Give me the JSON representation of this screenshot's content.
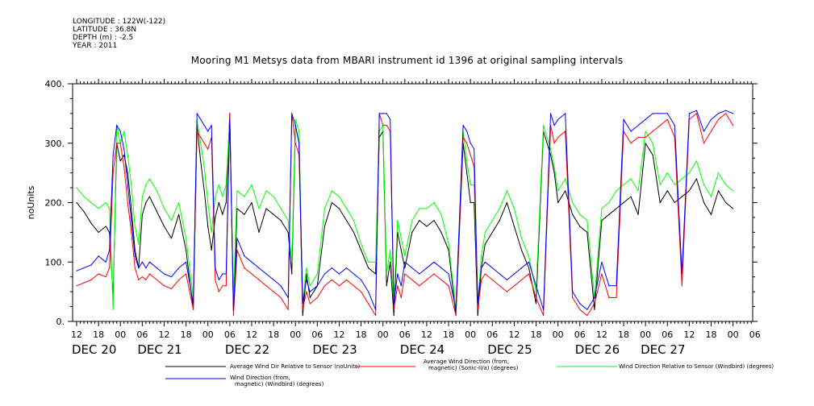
{
  "header": {
    "longitude": "LONGITUDE : 122W(-122)",
    "latitude": "LATITUDE : 36.8N",
    "depth": "DEPTH (m) : -2.5",
    "year": "YEAR : 2011"
  },
  "chart_data": {
    "type": "line",
    "title": "Mooring M1 Metsys data from MBARI instrument id 1396 at original sampling intervals",
    "ylabel": "noUnits",
    "xlabel": "",
    "ylim": [
      0,
      400
    ],
    "y_ticks": [
      "0.",
      "100.",
      "200.",
      "300.",
      "400."
    ],
    "y_tick_values": [
      0,
      100,
      200,
      300,
      400
    ],
    "x_range_hours": [
      0,
      180
    ],
    "x_note": "x values are hours after 2011-12-20 12:00",
    "hour_ticks": [
      {
        "h": 0,
        "label": "12"
      },
      {
        "h": 6,
        "label": "18"
      },
      {
        "h": 12,
        "label": "00"
      },
      {
        "h": 18,
        "label": "06"
      },
      {
        "h": 24,
        "label": "12"
      },
      {
        "h": 30,
        "label": "18"
      },
      {
        "h": 36,
        "label": "00"
      },
      {
        "h": 42,
        "label": "06"
      },
      {
        "h": 48,
        "label": "12"
      },
      {
        "h": 54,
        "label": "18"
      },
      {
        "h": 60,
        "label": "00"
      },
      {
        "h": 66,
        "label": "06"
      },
      {
        "h": 72,
        "label": "12"
      },
      {
        "h": 78,
        "label": "18"
      },
      {
        "h": 84,
        "label": "00"
      },
      {
        "h": 90,
        "label": "06"
      },
      {
        "h": 96,
        "label": "12"
      },
      {
        "h": 102,
        "label": "18"
      },
      {
        "h": 108,
        "label": "00"
      },
      {
        "h": 114,
        "label": "06"
      },
      {
        "h": 120,
        "label": "12"
      },
      {
        "h": 126,
        "label": "18"
      },
      {
        "h": 132,
        "label": "00"
      },
      {
        "h": 138,
        "label": "06"
      },
      {
        "h": 144,
        "label": "12"
      },
      {
        "h": 150,
        "label": "18"
      },
      {
        "h": 156,
        "label": "00"
      },
      {
        "h": 162,
        "label": "06"
      },
      {
        "h": 168,
        "label": "12"
      },
      {
        "h": 174,
        "label": "18"
      },
      {
        "h": 180,
        "label": "00"
      },
      {
        "h": 186,
        "label": "06"
      }
    ],
    "day_labels": [
      {
        "h": 0,
        "label": "DEC 20"
      },
      {
        "h": 18,
        "label": "DEC 21"
      },
      {
        "h": 42,
        "label": "DEC 22"
      },
      {
        "h": 66,
        "label": "DEC 23"
      },
      {
        "h": 90,
        "label": "DEC 24"
      },
      {
        "h": 114,
        "label": "DEC 25"
      },
      {
        "h": 138,
        "label": "DEC 26"
      },
      {
        "h": 156,
        "label": "DEC 27"
      }
    ],
    "series": [
      {
        "name": "Average Wind Dir Relative to Sensor (noUnits)",
        "color": "#000000",
        "x": [
          0,
          2,
          4,
          6,
          8,
          9,
          10,
          11,
          12,
          13,
          14,
          15,
          16,
          17,
          18,
          19,
          20,
          22,
          24,
          26,
          28,
          30,
          32,
          33,
          34,
          35,
          36,
          37,
          38,
          39,
          40,
          41,
          42,
          43,
          44,
          46,
          48,
          50,
          52,
          54,
          56,
          58,
          59,
          60,
          61,
          62,
          63,
          64,
          66,
          68,
          70,
          72,
          74,
          76,
          78,
          80,
          82,
          83,
          84,
          85,
          86,
          87,
          88,
          89,
          90,
          92,
          94,
          96,
          98,
          100,
          102,
          104,
          106,
          107,
          108,
          109,
          110,
          111,
          112,
          114,
          116,
          118,
          120,
          122,
          124,
          126,
          128,
          130,
          131,
          132,
          134,
          136,
          138,
          140,
          142,
          144,
          146,
          148,
          150,
          152,
          154,
          156,
          158,
          160,
          162,
          164,
          166,
          168,
          170,
          172,
          174,
          176,
          178,
          180
        ],
        "values": [
          200,
          185,
          165,
          150,
          160,
          150,
          40,
          300,
          270,
          280,
          250,
          190,
          120,
          90,
          180,
          200,
          210,
          185,
          160,
          140,
          180,
          120,
          20,
          330,
          270,
          220,
          160,
          120,
          175,
          200,
          180,
          200,
          350,
          20,
          190,
          180,
          200,
          150,
          190,
          180,
          170,
          150,
          80,
          330,
          300,
          10,
          80,
          40,
          60,
          160,
          200,
          190,
          170,
          150,
          120,
          90,
          80,
          310,
          320,
          60,
          100,
          10,
          150,
          120,
          90,
          150,
          170,
          160,
          170,
          150,
          120,
          10,
          300,
          250,
          200,
          200,
          10,
          90,
          130,
          150,
          170,
          200,
          160,
          120,
          90,
          30,
          320,
          280,
          250,
          200,
          220,
          180,
          160,
          150,
          20,
          170,
          180,
          190,
          200,
          210,
          180,
          300,
          280,
          200,
          220,
          200,
          210,
          220,
          240,
          200,
          180,
          220,
          200,
          190
        ]
      },
      {
        "name": "Average Wind Direction (from, magnetic) (Sonic-II/a) (degrees)",
        "color": "#ff0000",
        "x": [
          0,
          2,
          4,
          6,
          8,
          9,
          10,
          11,
          12,
          13,
          14,
          15,
          16,
          17,
          18,
          19,
          20,
          22,
          24,
          26,
          28,
          30,
          32,
          33,
          34,
          35,
          36,
          37,
          38,
          39,
          40,
          41,
          42,
          43,
          44,
          46,
          48,
          50,
          52,
          54,
          56,
          58,
          59,
          60,
          61,
          62,
          63,
          64,
          66,
          68,
          70,
          72,
          74,
          76,
          78,
          80,
          82,
          83,
          84,
          85,
          86,
          87,
          88,
          89,
          90,
          92,
          94,
          96,
          98,
          100,
          102,
          104,
          106,
          107,
          108,
          109,
          110,
          111,
          112,
          114,
          116,
          118,
          120,
          122,
          124,
          126,
          128,
          130,
          131,
          132,
          134,
          136,
          138,
          140,
          142,
          144,
          146,
          148,
          150,
          152,
          154,
          156,
          158,
          160,
          162,
          164,
          166,
          168,
          170,
          172,
          174,
          176,
          178,
          180
        ],
        "values": [
          60,
          65,
          70,
          80,
          75,
          90,
          250,
          300,
          300,
          260,
          200,
          150,
          90,
          70,
          75,
          70,
          80,
          70,
          60,
          55,
          70,
          80,
          20,
          320,
          310,
          300,
          290,
          310,
          70,
          50,
          60,
          60,
          350,
          10,
          120,
          90,
          80,
          70,
          60,
          50,
          40,
          20,
          350,
          300,
          280,
          20,
          50,
          30,
          40,
          60,
          70,
          60,
          70,
          60,
          50,
          30,
          10,
          350,
          330,
          330,
          320,
          20,
          60,
          40,
          80,
          70,
          60,
          70,
          80,
          70,
          60,
          10,
          310,
          300,
          280,
          260,
          20,
          70,
          80,
          70,
          60,
          50,
          60,
          70,
          80,
          40,
          10,
          330,
          300,
          310,
          320,
          40,
          20,
          10,
          30,
          80,
          40,
          40,
          320,
          300,
          310,
          310,
          320,
          330,
          340,
          310,
          60,
          340,
          350,
          300,
          320,
          340,
          350,
          330
        ]
      },
      {
        "name": "Wind Direction Relative to Sensor (Windbird) (degrees)",
        "color": "#00ff00",
        "x": [
          0,
          2,
          4,
          6,
          8,
          9,
          10,
          11,
          12,
          13,
          14,
          15,
          16,
          17,
          18,
          19,
          20,
          22,
          24,
          26,
          28,
          30,
          32,
          33,
          34,
          35,
          36,
          37,
          38,
          39,
          40,
          41,
          42,
          43,
          44,
          46,
          48,
          50,
          52,
          54,
          56,
          58,
          59,
          60,
          61,
          62,
          63,
          64,
          66,
          68,
          70,
          72,
          74,
          76,
          78,
          80,
          82,
          83,
          84,
          85,
          86,
          87,
          88,
          89,
          90,
          92,
          94,
          96,
          98,
          100,
          102,
          104,
          106,
          107,
          108,
          109,
          110,
          111,
          112,
          114,
          116,
          118,
          120,
          122,
          124,
          126,
          128,
          130,
          131,
          132,
          134,
          136,
          138,
          140,
          142,
          144,
          146,
          148,
          150,
          152,
          154,
          156,
          158,
          160,
          162,
          164,
          166,
          168,
          170,
          172,
          174,
          176,
          178,
          180
        ],
        "values": [
          225,
          210,
          200,
          190,
          200,
          190,
          20,
          330,
          300,
          320,
          280,
          230,
          160,
          130,
          210,
          230,
          240,
          220,
          190,
          170,
          200,
          140,
          40,
          340,
          300,
          260,
          200,
          150,
          210,
          230,
          210,
          230,
          340,
          40,
          220,
          210,
          230,
          190,
          220,
          210,
          190,
          170,
          100,
          340,
          320,
          30,
          90,
          60,
          80,
          190,
          220,
          210,
          190,
          170,
          130,
          100,
          100,
          320,
          330,
          80,
          120,
          30,
          170,
          140,
          110,
          170,
          190,
          190,
          200,
          180,
          130,
          20,
          320,
          270,
          230,
          230,
          30,
          110,
          150,
          170,
          190,
          220,
          190,
          140,
          110,
          50,
          330,
          290,
          260,
          220,
          240,
          200,
          180,
          170,
          40,
          190,
          200,
          220,
          230,
          240,
          220,
          320,
          300,
          230,
          250,
          230,
          240,
          250,
          270,
          230,
          210,
          250,
          230,
          220
        ]
      },
      {
        "name": "Wind Direction (from, magnetic) (Windbird) (degrees)",
        "color": "#0000ff",
        "x": [
          0,
          2,
          4,
          6,
          8,
          9,
          10,
          11,
          12,
          13,
          14,
          15,
          16,
          17,
          18,
          19,
          20,
          22,
          24,
          26,
          28,
          30,
          32,
          33,
          34,
          35,
          36,
          37,
          38,
          39,
          40,
          41,
          42,
          43,
          44,
          46,
          48,
          50,
          52,
          54,
          56,
          58,
          59,
          60,
          61,
          62,
          63,
          64,
          66,
          68,
          70,
          72,
          74,
          76,
          78,
          80,
          82,
          83,
          84,
          85,
          86,
          87,
          88,
          89,
          90,
          92,
          94,
          96,
          98,
          100,
          102,
          104,
          106,
          107,
          108,
          109,
          110,
          111,
          112,
          114,
          116,
          118,
          120,
          122,
          124,
          126,
          128,
          130,
          131,
          132,
          134,
          136,
          138,
          140,
          142,
          144,
          146,
          148,
          150,
          152,
          154,
          156,
          158,
          160,
          162,
          164,
          166,
          168,
          170,
          172,
          174,
          176,
          178,
          180
        ],
        "values": [
          85,
          90,
          95,
          110,
          100,
          120,
          280,
          330,
          320,
          290,
          230,
          170,
          110,
          90,
          100,
          90,
          100,
          90,
          80,
          75,
          90,
          100,
          30,
          350,
          340,
          330,
          320,
          330,
          90,
          70,
          80,
          80,
          340,
          20,
          140,
          110,
          100,
          90,
          80,
          70,
          60,
          40,
          350,
          330,
          300,
          30,
          70,
          50,
          60,
          80,
          90,
          80,
          90,
          80,
          70,
          50,
          20,
          350,
          350,
          350,
          340,
          30,
          80,
          60,
          100,
          90,
          80,
          90,
          100,
          90,
          80,
          20,
          330,
          320,
          300,
          290,
          30,
          90,
          100,
          90,
          80,
          70,
          80,
          90,
          100,
          60,
          20,
          350,
          330,
          340,
          350,
          50,
          30,
          20,
          40,
          100,
          60,
          60,
          340,
          320,
          330,
          340,
          350,
          350,
          350,
          330,
          80,
          350,
          355,
          320,
          340,
          350,
          355,
          350
        ]
      }
    ]
  },
  "legend": {
    "items": [
      {
        "label1": "Average Wind Dir Relative to Sensor (noUnits)",
        "label2": ""
      },
      {
        "label1": "Average Wind Direction (from,",
        "label2": "magnetic) (Sonic-II/a) (degrees)"
      },
      {
        "label1": "Wind Direction Relative to Sensor (Windbird) (degrees)",
        "label2": ""
      },
      {
        "label1": "Wind Direction (from,",
        "label2": "magnetic) (Windbird) (degrees)"
      }
    ]
  }
}
